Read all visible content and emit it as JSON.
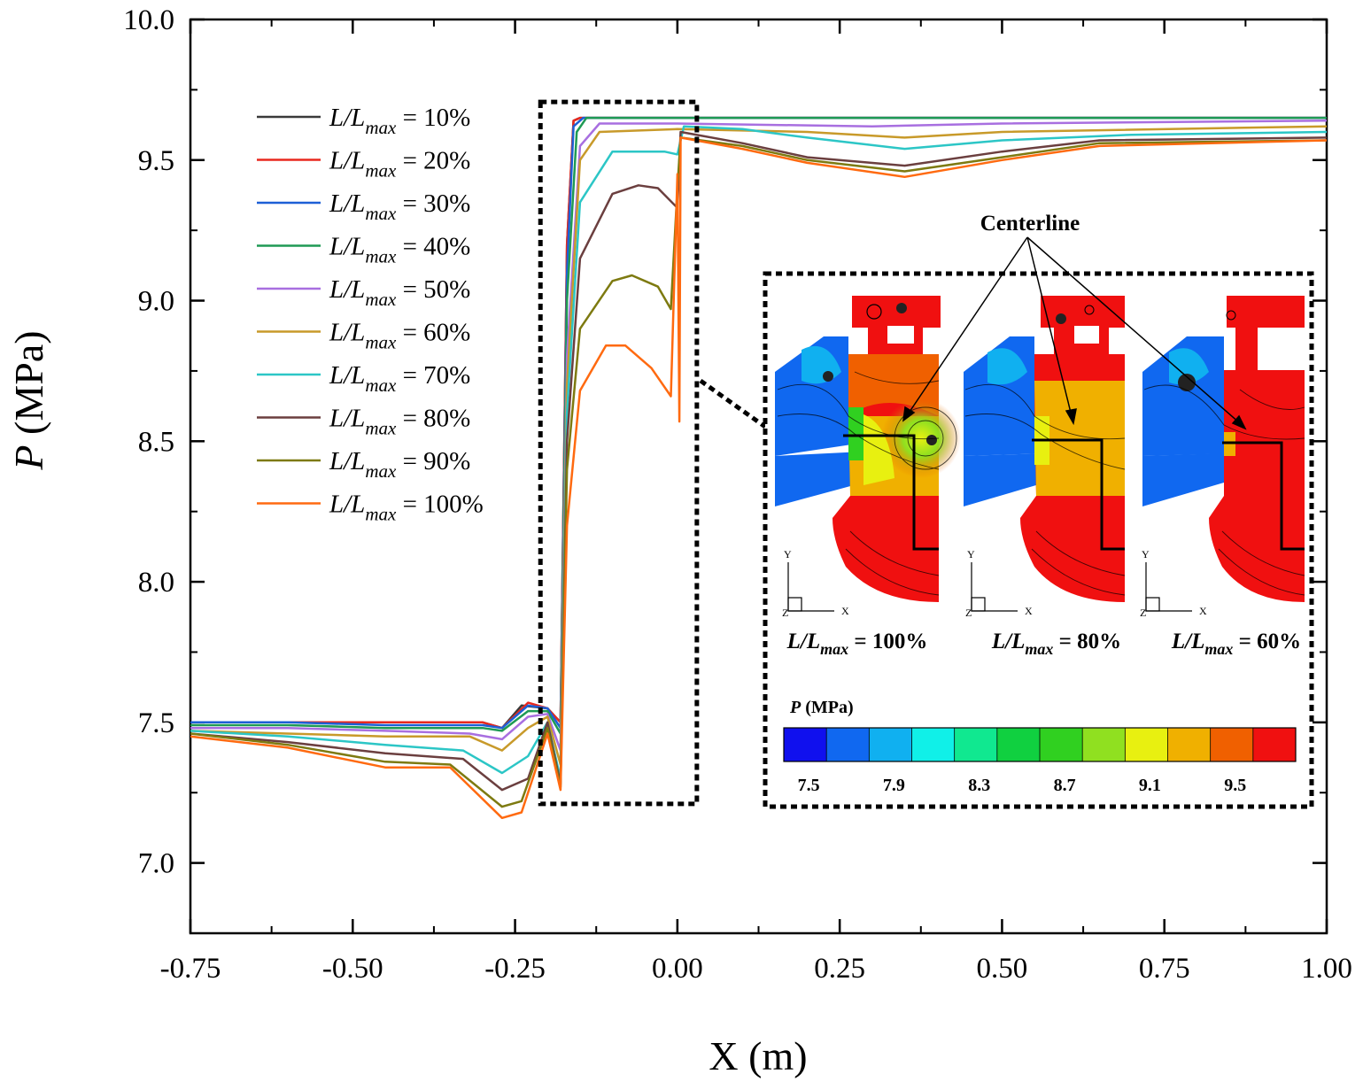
{
  "colors": {
    "series": [
      "#3a3a3a",
      "#e8281e",
      "#1d5fd6",
      "#1f9a55",
      "#a86fe0",
      "#c89a2a",
      "#2cc6c6",
      "#6b3f3f",
      "#7d7a10",
      "#ff6a10"
    ],
    "colorbar": [
      "#1010ee",
      "#1068f0",
      "#10b0f0",
      "#10f0e8",
      "#10e890",
      "#10d040",
      "#30d020",
      "#90e020",
      "#e8f010",
      "#f0b000",
      "#f06000",
      "#f01010"
    ]
  },
  "chart_data": {
    "type": "line",
    "xlabel": "X (m)",
    "ylabel_italic": "P",
    "ylabel_rest": " (MPa)",
    "xlim": [
      -0.75,
      1.0
    ],
    "ylim": [
      6.75,
      10.0
    ],
    "xticks": [
      "-0.75",
      "-0.50",
      "-0.25",
      "0.00",
      "0.25",
      "0.50",
      "0.75",
      "1.00"
    ],
    "yticks": [
      "7.0",
      "7.5",
      "8.0",
      "8.5",
      "9.0",
      "9.5",
      "10.0"
    ],
    "legend_prefix_italic": "L/L",
    "legend_sub": "max",
    "legend_eq": " = ",
    "series": [
      {
        "name": "10%",
        "points": [
          [
            -0.75,
            7.5
          ],
          [
            -0.6,
            7.5
          ],
          [
            -0.45,
            7.5
          ],
          [
            -0.3,
            7.5
          ],
          [
            -0.27,
            7.48
          ],
          [
            -0.24,
            7.56
          ],
          [
            -0.2,
            7.55
          ],
          [
            -0.18,
            7.5
          ],
          [
            -0.17,
            9.2
          ],
          [
            -0.16,
            9.64
          ],
          [
            -0.15,
            9.65
          ],
          [
            0.0,
            9.65
          ],
          [
            0.25,
            9.65
          ],
          [
            0.5,
            9.65
          ],
          [
            1.0,
            9.65
          ]
        ]
      },
      {
        "name": "20%",
        "points": [
          [
            -0.75,
            7.5
          ],
          [
            -0.6,
            7.5
          ],
          [
            -0.45,
            7.5
          ],
          [
            -0.3,
            7.5
          ],
          [
            -0.27,
            7.48
          ],
          [
            -0.23,
            7.57
          ],
          [
            -0.2,
            7.55
          ],
          [
            -0.18,
            7.5
          ],
          [
            -0.17,
            9.2
          ],
          [
            -0.16,
            9.64
          ],
          [
            -0.15,
            9.65
          ],
          [
            0.0,
            9.65
          ],
          [
            0.25,
            9.65
          ],
          [
            0.5,
            9.65
          ],
          [
            1.0,
            9.65
          ]
        ]
      },
      {
        "name": "30%",
        "points": [
          [
            -0.75,
            7.5
          ],
          [
            -0.6,
            7.5
          ],
          [
            -0.45,
            7.49
          ],
          [
            -0.3,
            7.49
          ],
          [
            -0.27,
            7.48
          ],
          [
            -0.23,
            7.56
          ],
          [
            -0.2,
            7.55
          ],
          [
            -0.18,
            7.48
          ],
          [
            -0.17,
            9.1
          ],
          [
            -0.16,
            9.62
          ],
          [
            -0.145,
            9.65
          ],
          [
            0.0,
            9.65
          ],
          [
            0.25,
            9.65
          ],
          [
            0.5,
            9.65
          ],
          [
            1.0,
            9.65
          ]
        ]
      },
      {
        "name": "40%",
        "points": [
          [
            -0.75,
            7.49
          ],
          [
            -0.6,
            7.49
          ],
          [
            -0.45,
            7.48
          ],
          [
            -0.3,
            7.48
          ],
          [
            -0.27,
            7.47
          ],
          [
            -0.23,
            7.54
          ],
          [
            -0.2,
            7.54
          ],
          [
            -0.18,
            7.46
          ],
          [
            -0.17,
            9.0
          ],
          [
            -0.155,
            9.6
          ],
          [
            -0.14,
            9.65
          ],
          [
            0.0,
            9.65
          ],
          [
            0.25,
            9.65
          ],
          [
            0.5,
            9.65
          ],
          [
            1.0,
            9.65
          ]
        ]
      },
      {
        "name": "50%",
        "points": [
          [
            -0.75,
            7.48
          ],
          [
            -0.6,
            7.48
          ],
          [
            -0.45,
            7.47
          ],
          [
            -0.32,
            7.46
          ],
          [
            -0.27,
            7.44
          ],
          [
            -0.23,
            7.52
          ],
          [
            -0.2,
            7.53
          ],
          [
            -0.18,
            7.4
          ],
          [
            -0.17,
            8.8
          ],
          [
            -0.15,
            9.55
          ],
          [
            -0.12,
            9.63
          ],
          [
            0.0,
            9.63
          ],
          [
            0.3,
            9.62
          ],
          [
            0.5,
            9.63
          ],
          [
            1.0,
            9.64
          ]
        ]
      },
      {
        "name": "60%",
        "points": [
          [
            -0.75,
            7.47
          ],
          [
            -0.6,
            7.46
          ],
          [
            -0.45,
            7.45
          ],
          [
            -0.32,
            7.45
          ],
          [
            -0.27,
            7.4
          ],
          [
            -0.23,
            7.48
          ],
          [
            -0.2,
            7.52
          ],
          [
            -0.18,
            7.35
          ],
          [
            -0.17,
            8.7
          ],
          [
            -0.15,
            9.5
          ],
          [
            -0.12,
            9.6
          ],
          [
            0.0,
            9.61
          ],
          [
            0.2,
            9.6
          ],
          [
            0.35,
            9.58
          ],
          [
            0.5,
            9.6
          ],
          [
            1.0,
            9.62
          ]
        ]
      },
      {
        "name": "70%",
        "points": [
          [
            -0.75,
            7.47
          ],
          [
            -0.6,
            7.45
          ],
          [
            -0.45,
            7.42
          ],
          [
            -0.33,
            7.4
          ],
          [
            -0.27,
            7.32
          ],
          [
            -0.23,
            7.38
          ],
          [
            -0.2,
            7.5
          ],
          [
            -0.18,
            7.3
          ],
          [
            -0.17,
            8.6
          ],
          [
            -0.15,
            9.35
          ],
          [
            -0.1,
            9.53
          ],
          [
            -0.02,
            9.53
          ],
          [
            0.0,
            9.52
          ],
          [
            0.01,
            9.62
          ],
          [
            0.1,
            9.61
          ],
          [
            0.2,
            9.58
          ],
          [
            0.35,
            9.54
          ],
          [
            0.5,
            9.57
          ],
          [
            0.7,
            9.59
          ],
          [
            1.0,
            9.6
          ]
        ]
      },
      {
        "name": "80%",
        "points": [
          [
            -0.75,
            7.46
          ],
          [
            -0.6,
            7.43
          ],
          [
            -0.45,
            7.39
          ],
          [
            -0.33,
            7.37
          ],
          [
            -0.27,
            7.26
          ],
          [
            -0.23,
            7.3
          ],
          [
            -0.2,
            7.5
          ],
          [
            -0.18,
            7.28
          ],
          [
            -0.17,
            8.5
          ],
          [
            -0.15,
            9.15
          ],
          [
            -0.1,
            9.38
          ],
          [
            -0.06,
            9.41
          ],
          [
            -0.03,
            9.4
          ],
          [
            0.0,
            9.33
          ],
          [
            0.005,
            9.6
          ],
          [
            0.1,
            9.56
          ],
          [
            0.2,
            9.51
          ],
          [
            0.35,
            9.48
          ],
          [
            0.5,
            9.53
          ],
          [
            0.65,
            9.57
          ],
          [
            1.0,
            9.58
          ]
        ]
      },
      {
        "name": "90%",
        "points": [
          [
            -0.75,
            7.46
          ],
          [
            -0.6,
            7.42
          ],
          [
            -0.45,
            7.36
          ],
          [
            -0.35,
            7.35
          ],
          [
            -0.27,
            7.2
          ],
          [
            -0.24,
            7.22
          ],
          [
            -0.2,
            7.48
          ],
          [
            -0.18,
            7.27
          ],
          [
            -0.17,
            8.4
          ],
          [
            -0.15,
            8.9
          ],
          [
            -0.1,
            9.07
          ],
          [
            -0.07,
            9.09
          ],
          [
            -0.03,
            9.05
          ],
          [
            -0.01,
            8.97
          ],
          [
            0.0,
            9.4
          ],
          [
            0.005,
            9.58
          ],
          [
            0.1,
            9.55
          ],
          [
            0.2,
            9.5
          ],
          [
            0.35,
            9.46
          ],
          [
            0.5,
            9.51
          ],
          [
            0.65,
            9.56
          ],
          [
            1.0,
            9.57
          ]
        ]
      },
      {
        "name": "100%",
        "points": [
          [
            -0.75,
            7.45
          ],
          [
            -0.6,
            7.41
          ],
          [
            -0.45,
            7.34
          ],
          [
            -0.35,
            7.34
          ],
          [
            -0.27,
            7.16
          ],
          [
            -0.24,
            7.18
          ],
          [
            -0.2,
            7.46
          ],
          [
            -0.18,
            7.26
          ],
          [
            -0.17,
            8.2
          ],
          [
            -0.15,
            8.68
          ],
          [
            -0.11,
            8.84
          ],
          [
            -0.08,
            8.84
          ],
          [
            -0.04,
            8.76
          ],
          [
            -0.01,
            8.66
          ],
          [
            0.0,
            9.45
          ],
          [
            0.003,
            8.57
          ],
          [
            0.005,
            9.58
          ],
          [
            0.1,
            9.54
          ],
          [
            0.2,
            9.49
          ],
          [
            0.35,
            9.44
          ],
          [
            0.5,
            9.5
          ],
          [
            0.65,
            9.55
          ],
          [
            1.0,
            9.57
          ]
        ]
      }
    ],
    "zoom_box": {
      "x": [
        -0.2,
        0.03
      ],
      "y": [
        7.21,
        9.65
      ]
    }
  },
  "inset": {
    "annotation": "Centerline",
    "panels": [
      {
        "label_value": " = 100%"
      },
      {
        "label_value": " = 80%"
      },
      {
        "label_value": " = 60%"
      }
    ],
    "axis_y": "Y",
    "axis_x": "X",
    "axis_z": "Z",
    "colorbar_title_italic": "P",
    "colorbar_title_rest": " (MPa)",
    "colorbar_ticks": [
      "7.5",
      "7.9",
      "8.3",
      "8.7",
      "9.1",
      "9.5"
    ]
  }
}
